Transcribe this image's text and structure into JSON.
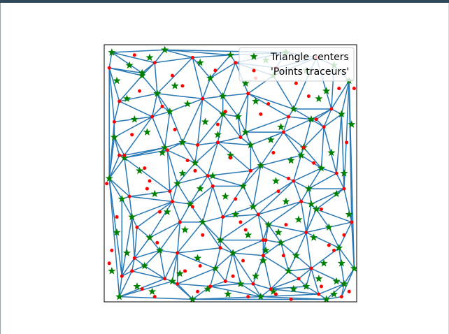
{
  "window": {
    "title_bar_color": "#2e4a5a"
  },
  "chart_data": {
    "type": "scatter",
    "title": "",
    "xlabel": "",
    "ylabel": "",
    "xlim": [
      0,
      1
    ],
    "ylim": [
      0,
      1
    ],
    "grid": false,
    "axes_visible": false,
    "legend_position": "top-right",
    "series": [
      {
        "name": "Triangle centers",
        "marker": "star",
        "color": "#008000",
        "x": [
          0.03,
          0.18,
          0.24,
          0.38,
          0.5,
          0.64,
          0.72,
          0.8,
          0.91,
          0.05,
          0.15,
          0.28,
          0.42,
          0.56,
          0.67,
          0.88,
          0.97,
          0.09,
          0.21,
          0.33,
          0.47,
          0.6,
          0.75,
          0.85,
          0.94,
          0.12,
          0.26,
          0.4,
          0.53,
          0.7,
          0.82,
          0.98,
          0.04,
          0.17,
          0.31,
          0.45,
          0.58,
          0.66,
          0.79,
          0.9,
          0.08,
          0.23,
          0.36,
          0.5,
          0.62,
          0.74,
          0.86,
          0.95,
          0.02,
          0.14,
          0.29,
          0.43,
          0.55,
          0.68,
          0.81,
          0.92,
          0.07,
          0.2,
          0.34,
          0.48,
          0.59,
          0.72,
          0.84,
          0.97,
          0.11,
          0.25,
          0.39,
          0.52,
          0.65,
          0.77,
          0.89,
          0.05,
          0.18,
          0.32,
          0.46,
          0.57,
          0.7,
          0.83,
          0.93,
          0.09,
          0.22,
          0.37,
          0.51,
          0.63,
          0.76,
          0.87,
          0.99,
          0.03,
          0.16,
          0.3,
          0.44,
          0.6,
          0.73,
          0.85,
          0.95,
          0.13,
          0.27,
          0.41,
          0.54,
          0.67,
          0.8,
          0.91,
          0.06,
          0.19,
          0.35,
          0.49,
          0.62,
          0.75,
          0.88,
          0.1,
          0.24,
          0.38,
          0.56,
          0.69,
          0.82,
          0.94,
          0.15,
          0.31,
          0.47,
          0.64,
          0.78,
          0.92
        ],
        "y": [
          0.97,
          0.95,
          0.98,
          0.93,
          0.96,
          0.94,
          0.97,
          0.9,
          0.92,
          0.86,
          0.89,
          0.84,
          0.87,
          0.85,
          0.88,
          0.82,
          0.86,
          0.79,
          0.81,
          0.77,
          0.8,
          0.78,
          0.75,
          0.79,
          0.73,
          0.71,
          0.74,
          0.7,
          0.72,
          0.68,
          0.71,
          0.69,
          0.64,
          0.66,
          0.62,
          0.65,
          0.61,
          0.63,
          0.6,
          0.58,
          0.56,
          0.58,
          0.54,
          0.57,
          0.53,
          0.55,
          0.52,
          0.5,
          0.48,
          0.51,
          0.46,
          0.49,
          0.45,
          0.47,
          0.44,
          0.42,
          0.4,
          0.42,
          0.38,
          0.41,
          0.37,
          0.39,
          0.36,
          0.34,
          0.33,
          0.35,
          0.31,
          0.34,
          0.3,
          0.32,
          0.29,
          0.27,
          0.25,
          0.28,
          0.24,
          0.26,
          0.23,
          0.25,
          0.21,
          0.19,
          0.2,
          0.17,
          0.19,
          0.16,
          0.18,
          0.15,
          0.13,
          0.12,
          0.14,
          0.11,
          0.13,
          0.1,
          0.12,
          0.09,
          0.07,
          0.06,
          0.08,
          0.05,
          0.07,
          0.04,
          0.06,
          0.03,
          0.02,
          0.04,
          0.01,
          0.03,
          0.02,
          0.05,
          0.01,
          0.92,
          0.6,
          0.44,
          0.66,
          0.27,
          0.38,
          0.15,
          0.88,
          0.5,
          0.73,
          0.2,
          0.57,
          0.08
        ]
      },
      {
        "name": "'Points traceurs'",
        "marker": "dot",
        "color": "#ff0000",
        "x": [
          0.02,
          0.12,
          0.2,
          0.27,
          0.35,
          0.44,
          0.52,
          0.6,
          0.68,
          0.76,
          0.84,
          0.93,
          0.06,
          0.14,
          0.23,
          0.31,
          0.39,
          0.48,
          0.57,
          0.65,
          0.73,
          0.81,
          0.9,
          0.99,
          0.04,
          0.11,
          0.19,
          0.28,
          0.37,
          0.45,
          0.54,
          0.62,
          0.71,
          0.79,
          0.87,
          0.96,
          0.08,
          0.16,
          0.25,
          0.33,
          0.41,
          0.5,
          0.58,
          0.67,
          0.75,
          0.83,
          0.92,
          0.01,
          0.1,
          0.18,
          0.26,
          0.35,
          0.43,
          0.52,
          0.61,
          0.69,
          0.78,
          0.86,
          0.95,
          0.05,
          0.13,
          0.22,
          0.3,
          0.39,
          0.47,
          0.56,
          0.64,
          0.72,
          0.8,
          0.89,
          0.98,
          0.03,
          0.12,
          0.21,
          0.29,
          0.38,
          0.46,
          0.55,
          0.63,
          0.71,
          0.82,
          0.91,
          0.07,
          0.15,
          0.24,
          0.32,
          0.42,
          0.51,
          0.59,
          0.68,
          0.77,
          0.86,
          0.94,
          0.02,
          0.11,
          0.2,
          0.29,
          0.37,
          0.48,
          0.57,
          0.66,
          0.74,
          0.85,
          0.97,
          0.06,
          0.17,
          0.27,
          0.36,
          0.45,
          0.54,
          0.63,
          0.73,
          0.84,
          0.95
        ],
        "y": [
          0.91,
          0.96,
          0.93,
          0.88,
          0.95,
          0.9,
          0.93,
          0.87,
          0.91,
          0.85,
          0.95,
          0.83,
          0.78,
          0.82,
          0.76,
          0.84,
          0.79,
          0.74,
          0.81,
          0.77,
          0.72,
          0.8,
          0.75,
          0.83,
          0.7,
          0.65,
          0.72,
          0.67,
          0.61,
          0.69,
          0.64,
          0.73,
          0.66,
          0.6,
          0.68,
          0.62,
          0.57,
          0.52,
          0.59,
          0.55,
          0.49,
          0.56,
          0.51,
          0.58,
          0.47,
          0.54,
          0.5,
          0.46,
          0.41,
          0.47,
          0.43,
          0.37,
          0.45,
          0.4,
          0.34,
          0.43,
          0.39,
          0.36,
          0.44,
          0.33,
          0.29,
          0.35,
          0.31,
          0.26,
          0.33,
          0.28,
          0.24,
          0.3,
          0.27,
          0.22,
          0.31,
          0.2,
          0.17,
          0.23,
          0.19,
          0.14,
          0.21,
          0.16,
          0.24,
          0.18,
          0.13,
          0.2,
          0.1,
          0.05,
          0.09,
          0.12,
          0.06,
          0.1,
          0.07,
          0.03,
          0.09,
          0.06,
          0.02,
          0.15,
          0.12,
          0.02,
          0.07,
          0.04,
          0.08,
          0.02,
          0.05,
          0.01,
          0.03,
          0.04,
          0.57,
          0.44,
          0.39,
          0.51,
          0.62,
          0.31,
          0.18,
          0.48,
          0.71,
          0.26
        ]
      }
    ],
    "mesh_color": "#2878b5"
  }
}
